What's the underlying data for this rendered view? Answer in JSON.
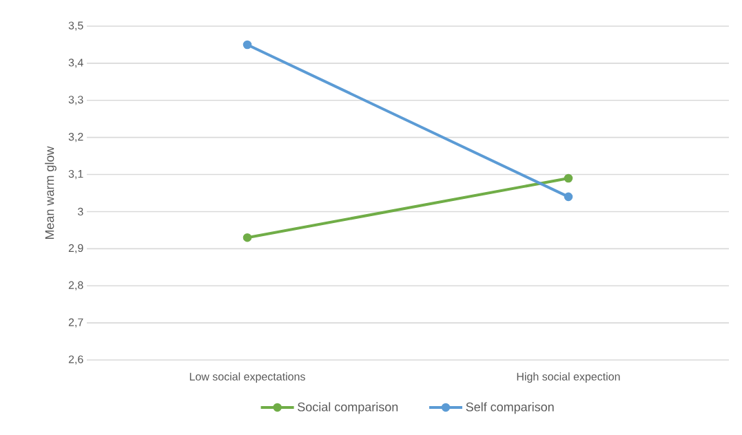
{
  "chart_data": {
    "type": "line",
    "ylabel": "Mean warm glow",
    "categories": [
      "Low social expectations",
      "High social expection"
    ],
    "series": [
      {
        "name": "Social comparison",
        "color": "#70ad47",
        "values": [
          2.93,
          3.09
        ]
      },
      {
        "name": "Self comparison",
        "color": "#5b9bd5",
        "values": [
          3.45,
          3.04
        ]
      }
    ],
    "ylim": [
      2.6,
      3.5
    ],
    "yticks": [
      {
        "value": 2.6,
        "label": "2,6"
      },
      {
        "value": 2.7,
        "label": "2,7"
      },
      {
        "value": 2.8,
        "label": "2,8"
      },
      {
        "value": 2.9,
        "label": "2,9"
      },
      3,
      {
        "value": 3.1,
        "label": "3,1"
      },
      {
        "value": 3.2,
        "label": "3,2"
      },
      {
        "value": 3.3,
        "label": "3,3"
      },
      {
        "value": 3.4,
        "label": "3,4"
      },
      {
        "value": 3.5,
        "label": "3,5"
      }
    ],
    "grid": "y",
    "legend": "bottom",
    "marker": "circle",
    "line_style": "solid"
  }
}
